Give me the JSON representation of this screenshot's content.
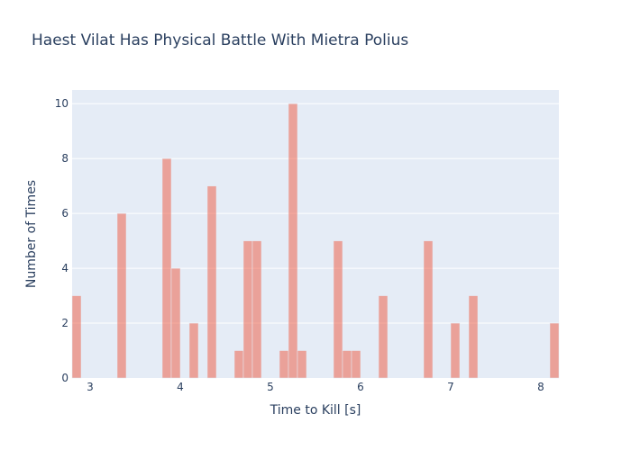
{
  "chart_data": {
    "type": "bar",
    "title": "Haest Vilat Has Physical Battle With Mietra Polius",
    "xlabel": "Time to Kill [s]",
    "ylabel": "Number of Times",
    "xlim": [
      2.8,
      8.2
    ],
    "ylim": [
      0,
      10.5
    ],
    "x_ticks": [
      3,
      4,
      5,
      6,
      7,
      8
    ],
    "y_ticks": [
      0,
      2,
      4,
      6,
      8,
      10
    ],
    "bin_width": 0.1,
    "grid": true,
    "colors": {
      "bar": "#ef553b",
      "bar_opacity": 0.5,
      "plot_background": "#e5ecf6",
      "grid": "#ffffff",
      "text": "#2a3f5f"
    },
    "bins": [
      {
        "start": 2.8,
        "count": 3
      },
      {
        "start": 3.3,
        "count": 6
      },
      {
        "start": 3.8,
        "count": 8
      },
      {
        "start": 3.9,
        "count": 4
      },
      {
        "start": 4.1,
        "count": 2
      },
      {
        "start": 4.3,
        "count": 7
      },
      {
        "start": 4.6,
        "count": 1
      },
      {
        "start": 4.7,
        "count": 5
      },
      {
        "start": 4.8,
        "count": 5
      },
      {
        "start": 5.1,
        "count": 1
      },
      {
        "start": 5.2,
        "count": 10
      },
      {
        "start": 5.3,
        "count": 1
      },
      {
        "start": 5.7,
        "count": 5
      },
      {
        "start": 5.8,
        "count": 1
      },
      {
        "start": 5.9,
        "count": 1
      },
      {
        "start": 6.2,
        "count": 3
      },
      {
        "start": 6.7,
        "count": 5
      },
      {
        "start": 7.0,
        "count": 2
      },
      {
        "start": 7.2,
        "count": 3
      },
      {
        "start": 8.1,
        "count": 2
      }
    ]
  }
}
